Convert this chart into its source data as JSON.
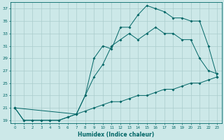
{
  "xlabel": "Humidex (Indice chaleur)",
  "background_color": "#cce8e8",
  "grid_color": "#aacccc",
  "line_color": "#006666",
  "xlim": [
    -0.5,
    23.5
  ],
  "ylim": [
    18.5,
    38
  ],
  "xticks": [
    0,
    1,
    2,
    3,
    4,
    5,
    6,
    7,
    8,
    9,
    10,
    11,
    12,
    13,
    14,
    15,
    16,
    17,
    18,
    19,
    20,
    21,
    22,
    23
  ],
  "yticks": [
    19,
    21,
    23,
    25,
    27,
    29,
    31,
    33,
    35,
    37
  ],
  "series1_x": [
    0,
    1,
    2,
    3,
    4,
    5,
    6,
    7,
    8,
    9,
    10,
    11,
    12,
    13,
    14,
    15,
    16,
    17,
    18,
    19,
    20,
    21,
    22,
    23
  ],
  "series1_y": [
    21,
    19,
    19,
    19,
    19,
    19,
    19.5,
    20,
    20.5,
    21,
    21.5,
    22,
    22,
    22.5,
    23,
    23,
    23.5,
    24,
    24,
    24.5,
    25,
    25,
    25.5,
    26
  ],
  "series2_x": [
    0,
    7,
    8,
    9,
    10,
    11,
    12,
    13,
    14,
    15,
    16,
    17,
    18,
    19,
    20,
    21,
    22,
    23
  ],
  "series2_y": [
    21,
    20,
    23,
    29,
    31,
    30.5,
    34,
    34,
    36,
    37.5,
    37,
    36.5,
    35.5,
    35.5,
    35,
    35,
    31,
    26
  ],
  "series3_x": [
    0,
    1,
    2,
    3,
    4,
    5,
    6,
    7,
    8,
    9,
    10,
    11,
    12,
    13,
    14,
    15,
    16,
    17,
    18,
    19,
    20,
    21,
    22,
    23
  ],
  "series3_y": [
    21,
    19,
    19,
    19,
    19,
    19,
    19.5,
    20,
    23,
    26,
    28,
    31,
    32,
    33,
    32,
    33,
    34,
    33,
    33,
    32,
    32,
    29,
    27,
    26.5
  ]
}
